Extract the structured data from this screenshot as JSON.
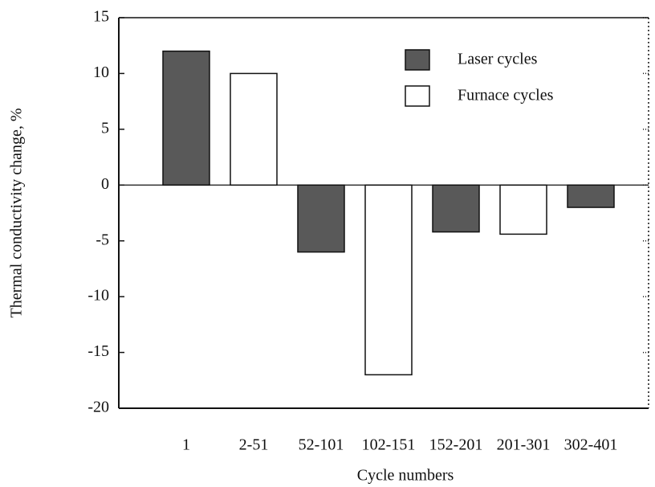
{
  "chart_data": {
    "type": "bar",
    "x_label": "Cycle numbers",
    "y_label": "Thermal conductivity change, %",
    "categories": [
      "1",
      "2-51",
      "52-101",
      "102-151",
      "152-201",
      "201-301",
      "302-401"
    ],
    "series": [
      {
        "name": "Laser cycles",
        "color": "#595959",
        "values": [
          12,
          null,
          -6,
          null,
          -4.2,
          null,
          -2
        ]
      },
      {
        "name": "Furnace cycles",
        "color": "#ffffff",
        "values": [
          null,
          10,
          null,
          -17,
          null,
          -4.4,
          null
        ]
      }
    ],
    "ylim": [
      -20,
      15
    ],
    "yticks": [
      -20,
      -15,
      -10,
      -5,
      0,
      5,
      10,
      15
    ]
  }
}
